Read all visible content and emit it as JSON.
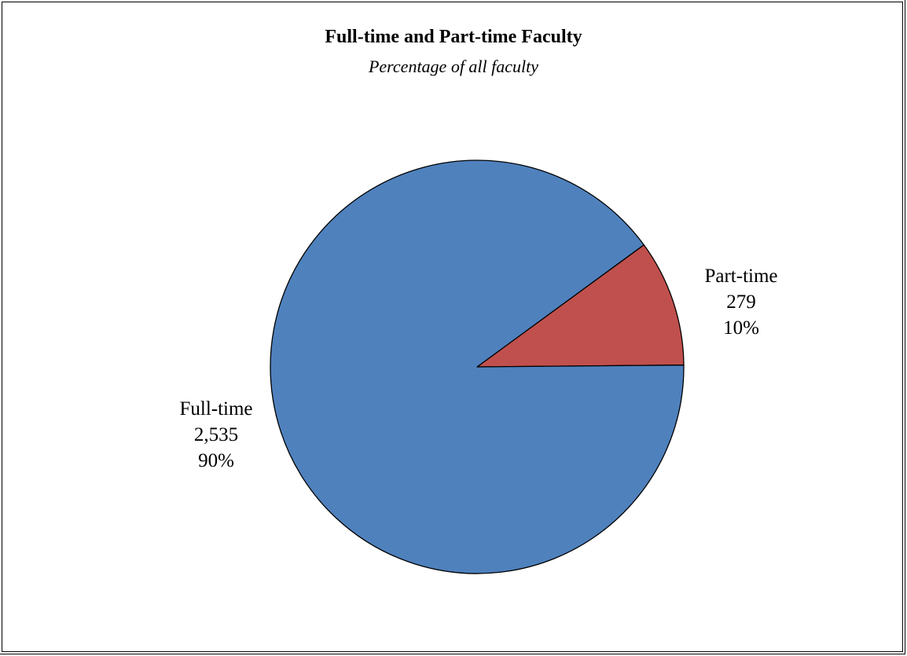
{
  "chart_data": {
    "type": "pie",
    "title": "Full-time and Part-time Faculty",
    "subtitle": "Percentage of all faculty",
    "slices": [
      {
        "label": "Part-time",
        "value": 279,
        "value_text": "279",
        "percent_text": "10%",
        "color": "#C0504D"
      },
      {
        "label": "Full-time",
        "value": 2535,
        "value_text": "2,535",
        "percent_text": "90%",
        "color": "#4F81BD"
      }
    ]
  }
}
